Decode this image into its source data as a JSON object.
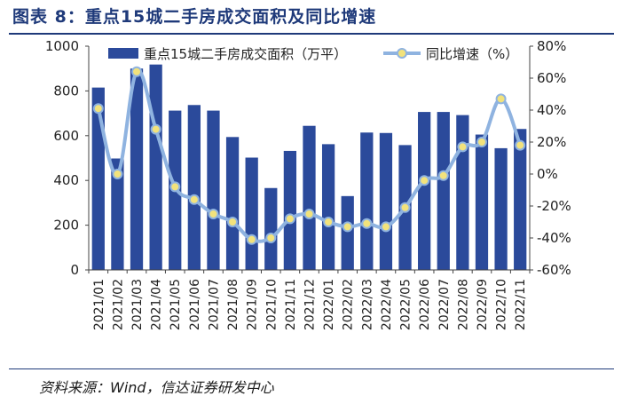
{
  "page": {
    "title": "图表 8：重点15城二手房成交面积及同比增速",
    "source": "资料来源：Wind，信达证券研发中心"
  },
  "chart_data": {
    "type": "bar",
    "categories": [
      "2021/01",
      "2021/02",
      "2021/03",
      "2021/04",
      "2021/05",
      "2021/06",
      "2021/07",
      "2021/08",
      "2021/09",
      "2021/10",
      "2021/11",
      "2021/12",
      "2022/01",
      "2022/02",
      "2022/03",
      "2022/04",
      "2022/05",
      "2022/06",
      "2022/07",
      "2022/08",
      "2022/09",
      "2022/10",
      "2022/11"
    ],
    "series": [
      {
        "name": "重点15城二手房成交面积（万平）",
        "type": "bar",
        "axis": "left",
        "color": "#2b4a9b",
        "values": [
          815,
          498,
          900,
          918,
          712,
          737,
          712,
          594,
          502,
          366,
          532,
          644,
          562,
          330,
          614,
          612,
          558,
          706,
          706,
          692,
          605,
          544,
          630
        ]
      },
      {
        "name": "同比增速（%）",
        "type": "line",
        "axis": "right",
        "color": "#8fb3e0",
        "marker_color": "#f2e27c",
        "values": [
          41,
          0,
          64,
          28,
          -8,
          -16,
          -25,
          -30,
          -41,
          -40,
          -28,
          -25,
          -30,
          -33,
          -31,
          -33,
          -21,
          -4,
          -1,
          17,
          20,
          47,
          18
        ]
      }
    ],
    "y_left": {
      "min": 0,
      "max": 1000,
      "ticks": [
        0,
        200,
        400,
        600,
        800,
        1000
      ]
    },
    "y_right": {
      "min": -60,
      "max": 80,
      "ticks": [
        -60,
        -40,
        -20,
        0,
        20,
        40,
        60,
        80
      ],
      "tick_labels": [
        "-60%",
        "-40%",
        "-20%",
        "0%",
        "20%",
        "40%",
        "60%",
        "80%"
      ]
    },
    "legend": "top",
    "grid": false
  }
}
